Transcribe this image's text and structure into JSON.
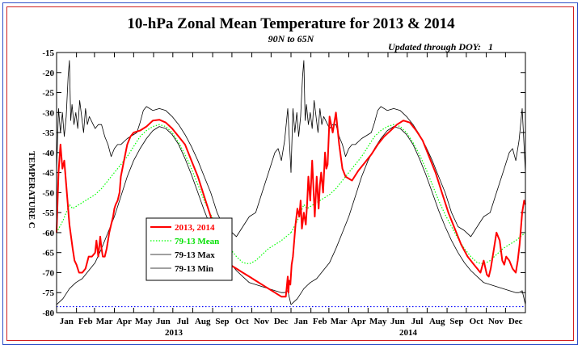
{
  "chart_data": {
    "type": "line",
    "title": "10-hPa Zonal Mean Temperature for 2013 & 2014",
    "subtitle": "90N to 65N",
    "note": "Updated through DOY:   1",
    "ylabel": "TEMPERATURE C",
    "ylim": [
      -80,
      -15
    ],
    "yticks": [
      -15,
      -20,
      -25,
      -30,
      -35,
      -40,
      -45,
      -50,
      -55,
      -60,
      -65,
      -70,
      -75,
      -80
    ],
    "xlim": [
      0,
      730
    ],
    "month_labels": [
      "Jan",
      "Feb",
      "Mar",
      "Apr",
      "May",
      "Jun",
      "Jul",
      "Aug",
      "Sep",
      "Oct",
      "Nov",
      "Dec",
      "Jan",
      "Feb",
      "Mar",
      "Apr",
      "May",
      "Jun",
      "Jul",
      "Aug",
      "Sep",
      "Oct",
      "Nov",
      "Dec"
    ],
    "year_labels": [
      "2013",
      "2014"
    ],
    "reference_line": -78.5,
    "legend": {
      "placement": "lower-left",
      "entries": [
        "2013, 2014",
        "79-13 Mean",
        "79-13 Max",
        "79-13 Min"
      ]
    },
    "colors": {
      "obs": "#ff0000",
      "mean": "#00ff00",
      "max": "#000000",
      "min": "#000000",
      "reference": "#0000ff",
      "frame_outer": "#3050c8",
      "frame_inner": "#d02020"
    },
    "series": [
      {
        "name": "2013, 2014",
        "x": [
          0,
          3,
          6,
          9,
          12,
          15,
          20,
          25,
          28,
          31,
          35,
          40,
          45,
          50,
          55,
          60,
          62,
          65,
          68,
          70,
          72,
          75,
          78,
          82,
          85,
          88,
          90,
          92,
          95,
          98,
          100,
          105,
          110,
          115,
          120,
          130,
          140,
          150,
          160,
          170,
          180,
          190,
          200,
          210,
          220,
          230,
          240,
          250,
          260,
          270,
          280,
          290,
          300,
          310,
          320,
          330,
          340,
          350,
          357,
          360,
          361,
          362,
          364,
          366,
          368,
          370,
          372,
          375,
          378,
          380,
          382,
          385,
          388,
          390,
          392,
          395,
          398,
          400,
          402,
          405,
          408,
          410,
          412,
          415,
          418,
          420,
          422,
          425,
          430,
          435,
          440,
          445,
          450,
          460,
          470,
          480,
          490,
          500,
          510,
          520,
          530,
          540,
          550,
          560,
          570,
          580,
          590,
          600,
          610,
          620,
          630,
          640,
          645,
          650,
          655,
          660,
          665,
          670,
          673,
          676,
          680,
          685,
          690,
          694,
          697,
          700,
          705,
          710,
          715,
          718,
          721,
          725,
          728,
          730
        ],
        "y": [
          -60,
          -45,
          -38,
          -44,
          -42,
          -48,
          -58,
          -64,
          -67,
          -68,
          -70,
          -70,
          -69,
          -66,
          -66,
          -65,
          -62,
          -66,
          -61,
          -64,
          -66,
          -66,
          -64,
          -60,
          -58,
          -56,
          -54,
          -53,
          -52,
          -50,
          -46,
          -42,
          -38,
          -36,
          -35,
          -34.5,
          -33.5,
          -32,
          -31.8,
          -32.5,
          -34,
          -36,
          -38,
          -42,
          -46,
          -51,
          -56,
          -61,
          -65,
          -68,
          -69,
          -70,
          -71,
          -72,
          -73,
          -74,
          -75,
          -76,
          -76,
          -71,
          -75,
          -72,
          -73,
          -68,
          -66,
          -62,
          -58,
          -54,
          -56,
          -52,
          -59,
          -55,
          -58,
          -53,
          -46,
          -52,
          -42,
          -49,
          -56,
          -46,
          -54,
          -48,
          -45,
          -50,
          -40,
          -44,
          -43,
          -31,
          -35,
          -30,
          -38,
          -44,
          -46,
          -47,
          -44.5,
          -42.5,
          -40.5,
          -38,
          -36,
          -34.5,
          -33,
          -32,
          -32.5,
          -34.5,
          -37,
          -41,
          -45,
          -50,
          -55,
          -59,
          -63,
          -66,
          -67,
          -68,
          -69,
          -70,
          -67,
          -70.5,
          -71,
          -69,
          -65,
          -60,
          -62,
          -67,
          -68,
          -66,
          -67,
          -69,
          -70,
          -67,
          -63,
          -55,
          -52,
          -53
        ]
      },
      {
        "name": "79-13 Mean",
        "x": [
          0,
          10,
          15,
          20,
          25,
          30,
          40,
          50,
          60,
          70,
          80,
          90,
          100,
          110,
          120,
          130,
          140,
          150,
          160,
          170,
          180,
          190,
          200,
          210,
          220,
          230,
          240,
          250,
          260,
          270,
          280,
          290,
          300,
          310,
          320,
          330,
          340,
          350,
          365
        ],
        "y": [
          -60,
          -57,
          -55,
          -53,
          -54,
          -53.5,
          -52.5,
          -51.5,
          -50.5,
          -49,
          -47,
          -45,
          -43,
          -41,
          -38.5,
          -36,
          -34.5,
          -33.5,
          -33,
          -33.5,
          -35,
          -37.5,
          -40.5,
          -44,
          -48,
          -52,
          -55.5,
          -58.5,
          -61.5,
          -64,
          -66,
          -67.5,
          -67.8,
          -67,
          -65.5,
          -64,
          -63,
          -62,
          -60
        ]
      },
      {
        "name": "79-13 Max",
        "x": [
          0,
          3,
          6,
          9,
          12,
          15,
          18,
          20,
          22,
          24,
          27,
          30,
          33,
          36,
          39,
          42,
          45,
          48,
          51,
          54,
          57,
          60,
          65,
          70,
          75,
          80,
          85,
          90,
          95,
          100,
          110,
          120,
          125,
          130,
          135,
          140,
          150,
          160,
          170,
          180,
          190,
          200,
          210,
          220,
          230,
          240,
          250,
          260,
          270,
          280,
          290,
          300,
          310,
          320,
          330,
          340,
          345,
          350,
          355,
          360,
          365
        ],
        "y": [
          -45,
          -29,
          -35,
          -30,
          -36,
          -31,
          -21,
          -17,
          -32,
          -28,
          -33,
          -30,
          -34,
          -27,
          -31,
          -35,
          -29,
          -33,
          -31,
          -32,
          -33,
          -34,
          -33,
          -33,
          -36,
          -38,
          -41,
          -39,
          -38,
          -38,
          -36.5,
          -35.5,
          -35,
          -32.5,
          -29.5,
          -28.5,
          -29.5,
          -29,
          -29.5,
          -31,
          -33,
          -35.5,
          -38.5,
          -42,
          -46,
          -50,
          -55,
          -58.5,
          -59.5,
          -61,
          -58.5,
          -56,
          -55,
          -50,
          -45,
          -40,
          -39,
          -42,
          -37,
          -29,
          -45
        ]
      },
      {
        "name": "79-13 Min",
        "x": [
          0,
          10,
          20,
          30,
          40,
          50,
          60,
          70,
          80,
          90,
          100,
          110,
          120,
          130,
          140,
          150,
          160,
          170,
          180,
          190,
          200,
          210,
          220,
          230,
          240,
          250,
          260,
          270,
          280,
          290,
          300,
          310,
          320,
          330,
          340,
          350,
          355,
          360,
          365
        ],
        "y": [
          -78,
          -76.5,
          -74,
          -72.5,
          -71.5,
          -69.5,
          -67.5,
          -64,
          -60,
          -56,
          -51,
          -46,
          -42,
          -39,
          -36.5,
          -34.5,
          -33.5,
          -34,
          -35.5,
          -38,
          -41.5,
          -45.5,
          -50,
          -54.5,
          -58.5,
          -62,
          -65,
          -67.5,
          -69.5,
          -71,
          -72.5,
          -73,
          -73.5,
          -74,
          -74.5,
          -75,
          -75,
          -74.5,
          -78
        ]
      }
    ]
  }
}
